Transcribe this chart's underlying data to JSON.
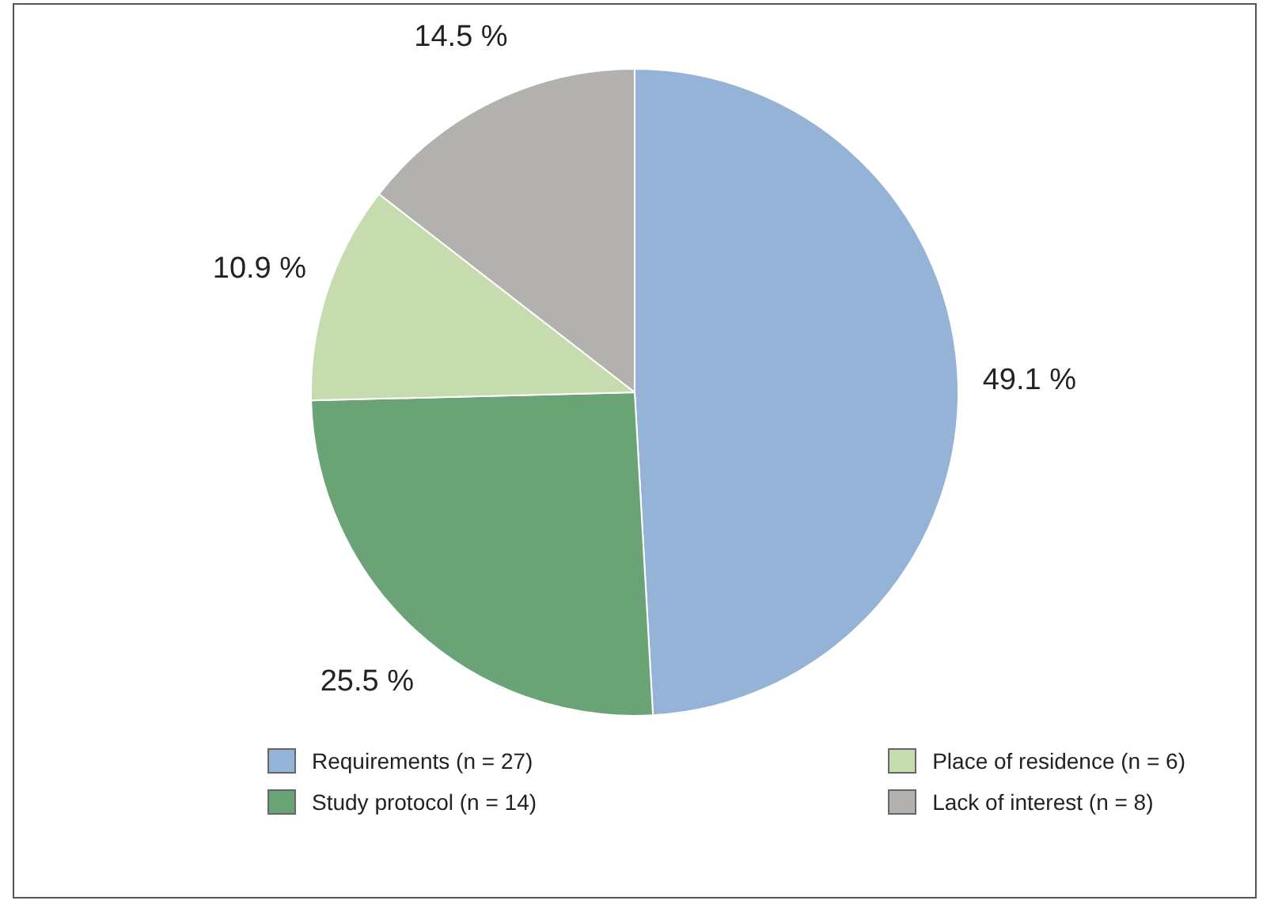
{
  "chart_data": {
    "type": "pie",
    "categories": [
      "Requirements (n = 27)",
      "Study protocol (n = 14)",
      "Place of residence (n = 6)",
      "Lack of interest (n = 8)"
    ],
    "values": [
      49.1,
      25.5,
      10.9,
      14.5
    ],
    "colors": [
      "#95b3d7",
      "#6aa476",
      "#c6dcae",
      "#b3b1ae"
    ],
    "value_labels": [
      "49.1 %",
      "25.5 %",
      "10.9 %",
      "14.5 %"
    ],
    "legend": "bottom"
  }
}
